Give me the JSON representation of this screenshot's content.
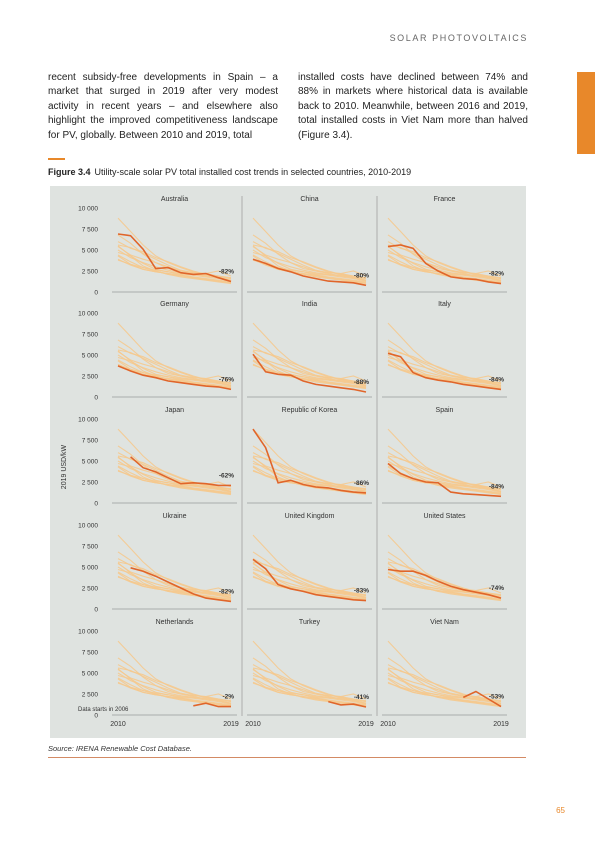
{
  "header": {
    "section_title": "SOLAR PHOTOVOLTAICS"
  },
  "body": {
    "left_text": "recent subsidy-free developments in Spain – a market that surged in 2019 after very modest activity in recent years – and elsewhere also highlight the improved competitiveness landscape for PV, globally. Between 2010 and 2019, total",
    "right_text": "installed costs have declined between 74% and 88% in markets where historical data is available back to 2010. Meanwhile, between 2016 and 2019, total installed costs in Viet Nam more than halved (Figure 3.4)."
  },
  "figure": {
    "number": "Figure 3.4",
    "caption": "Utility-scale solar PV total installed cost trends in selected countries, 2010-2019",
    "source": "Source: IRENA Renewable Cost Database."
  },
  "page_number": "65",
  "colors": {
    "highlight": "#e0652a",
    "background_lines": "#f5c98e",
    "panel_bg": "#dfe3e0",
    "accent": "#e8882a"
  },
  "chart_data": {
    "type": "line",
    "ylabel": "2019 USD/kW",
    "ylim": [
      0,
      10000
    ],
    "yticks": [
      0,
      2500,
      5000,
      7500,
      10000
    ],
    "ytick_labels": [
      "0",
      "2 500",
      "5 000",
      "7 500",
      "10 000"
    ],
    "x": [
      2010,
      2011,
      2012,
      2013,
      2014,
      2015,
      2016,
      2017,
      2018,
      2019
    ],
    "xtick_labels": [
      "2010",
      "2019"
    ],
    "note_label": "Data starts in 2006",
    "background_series": [
      [
        8800,
        7200,
        5600,
        4300,
        3500,
        2900,
        2400,
        2100,
        1800,
        1300
      ],
      [
        6800,
        5800,
        4500,
        3500,
        2800,
        2500,
        2200,
        1900,
        1700,
        1400
      ],
      [
        6000,
        5200,
        4800,
        4100,
        3600,
        3000,
        2500,
        2100,
        1900,
        1600
      ],
      [
        5600,
        5300,
        4600,
        3900,
        3200,
        2600,
        2300,
        2200,
        2500,
        1900
      ],
      [
        5400,
        4400,
        3900,
        3500,
        3000,
        2500,
        2300,
        2200,
        1900,
        1700
      ],
      [
        5000,
        4100,
        3500,
        3000,
        2600,
        2300,
        2100,
        2000,
        1700,
        1400
      ],
      [
        4700,
        4300,
        3400,
        2700,
        2400,
        2100,
        2000,
        1800,
        1600,
        1300
      ],
      [
        4400,
        3600,
        2900,
        2600,
        2400,
        2200,
        2100,
        1900,
        1800,
        1600
      ],
      [
        4300,
        3300,
        2700,
        2400,
        2200,
        2000,
        1700,
        1500,
        1300,
        1100
      ],
      [
        3900,
        3200,
        2700,
        2400,
        2200,
        2000,
        1800,
        1600,
        1400,
        1200
      ],
      [
        3800,
        3300,
        2900,
        2500,
        2100,
        1800,
        1600,
        1400,
        1200,
        1000
      ],
      [
        5500,
        4300,
        3100,
        2500,
        2100,
        1900,
        1700,
        1500,
        1300,
        1100
      ]
    ],
    "panels": [
      {
        "country": "Australia",
        "change": "-82%",
        "x": [
          2010,
          2011,
          2012,
          2013,
          2014,
          2015,
          2016,
          2017,
          2018,
          2019
        ],
        "values": [
          6900,
          6700,
          5100,
          2800,
          2900,
          2300,
          2100,
          2200,
          1700,
          1250
        ]
      },
      {
        "country": "China",
        "change": "-80%",
        "x": [
          2010,
          2011,
          2012,
          2013,
          2014,
          2015,
          2016,
          2017,
          2018,
          2019
        ],
        "values": [
          3900,
          3400,
          2800,
          2400,
          1900,
          1600,
          1300,
          1200,
          1100,
          800
        ]
      },
      {
        "country": "France",
        "change": "-82%",
        "x": [
          2010,
          2011,
          2012,
          2013,
          2014,
          2015,
          2016,
          2017,
          2018,
          2019
        ],
        "values": [
          5400,
          5600,
          5200,
          3400,
          2500,
          1800,
          1600,
          1500,
          1200,
          1000
        ]
      },
      {
        "country": "Germany",
        "change": "-76%",
        "x": [
          2010,
          2011,
          2012,
          2013,
          2014,
          2015,
          2016,
          2017,
          2018,
          2019
        ],
        "values": [
          3700,
          3100,
          2600,
          2300,
          1900,
          1700,
          1500,
          1300,
          1200,
          900
        ]
      },
      {
        "country": "India",
        "change": "-88%",
        "x": [
          2010,
          2011,
          2012,
          2013,
          2014,
          2015,
          2016,
          2017,
          2018,
          2019
        ],
        "values": [
          5100,
          3000,
          2700,
          2600,
          1900,
          1500,
          1300,
          1100,
          900,
          600
        ]
      },
      {
        "country": "Italy",
        "change": "-84%",
        "x": [
          2010,
          2011,
          2012,
          2013,
          2014,
          2015,
          2016,
          2017,
          2018,
          2019
        ],
        "values": [
          5200,
          4800,
          2900,
          2300,
          2000,
          1800,
          1500,
          1300,
          1100,
          900
        ]
      },
      {
        "country": "Japan",
        "change": "-62%",
        "x": [
          2011,
          2012,
          2013,
          2014,
          2015,
          2016,
          2017,
          2018,
          2019
        ],
        "values": [
          5500,
          4200,
          3700,
          3000,
          2300,
          2400,
          2300,
          2100,
          2100
        ]
      },
      {
        "country": "Republic of Korea",
        "change": "-86%",
        "x": [
          2010,
          2011,
          2012,
          2013,
          2014,
          2015,
          2016,
          2017,
          2018,
          2019
        ],
        "values": [
          8800,
          6600,
          2400,
          2700,
          2200,
          1900,
          1800,
          1500,
          1300,
          1200
        ]
      },
      {
        "country": "Spain",
        "change": "-84%",
        "x": [
          2010,
          2011,
          2012,
          2013,
          2014,
          2015,
          2016,
          2017,
          2018,
          2019
        ],
        "values": [
          4700,
          3500,
          2900,
          2500,
          2400,
          1300,
          1100,
          1000,
          900,
          800
        ]
      },
      {
        "country": "Ukraine",
        "change": "-82%",
        "x": [
          2011,
          2012,
          2013,
          2014,
          2015,
          2016,
          2017,
          2018,
          2019
        ],
        "values": [
          4900,
          4500,
          3900,
          3200,
          2500,
          1800,
          1300,
          1100,
          900
        ]
      },
      {
        "country": "United Kingdom",
        "change": "-83%",
        "x": [
          2010,
          2011,
          2012,
          2013,
          2014,
          2015,
          2016,
          2017,
          2018,
          2019
        ],
        "values": [
          5900,
          4800,
          2900,
          2400,
          2100,
          1700,
          1500,
          1300,
          1100,
          1000
        ]
      },
      {
        "country": "United States",
        "change": "-74%",
        "x": [
          2010,
          2011,
          2012,
          2013,
          2014,
          2015,
          2016,
          2017,
          2018,
          2019
        ],
        "values": [
          4700,
          4500,
          4500,
          4000,
          3300,
          2700,
          2300,
          2000,
          1700,
          1300
        ]
      },
      {
        "country": "Netherlands",
        "change": "-2%",
        "x": [
          2016,
          2017,
          2018,
          2019
        ],
        "values": [
          1100,
          1400,
          1000,
          1000
        ]
      },
      {
        "country": "Turkey",
        "change": "-41%",
        "x": [
          2016,
          2017,
          2018,
          2019
        ],
        "values": [
          1600,
          1200,
          1300,
          950
        ]
      },
      {
        "country": "Viet Nam",
        "change": "-53%",
        "x": [
          2016,
          2017,
          2018,
          2019
        ],
        "values": [
          2100,
          2800,
          1900,
          1000
        ]
      }
    ]
  }
}
